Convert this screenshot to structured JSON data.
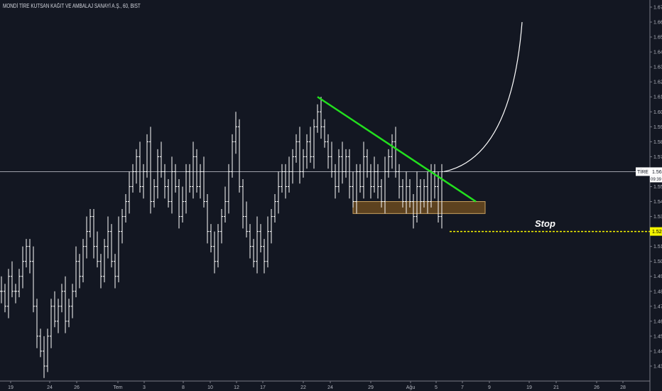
{
  "title": "MONDİ TİRE KUTSAN KAĞIT VE AMBALAJ SANAYİ A.Ş., 60, BIST",
  "colors": {
    "background": "#131722",
    "bars": "#ffffff",
    "trendline": "#22e01e",
    "zone_fill": "#6b4a1f",
    "zone_border": "#c8a060",
    "stop_line": "#f5f500",
    "price_line": "#b2b5be"
  },
  "chart_data": {
    "type": "ohlc-bar",
    "interval": "60",
    "closes": [
      1.48,
      1.47,
      1.49,
      1.48,
      1.48,
      1.49,
      1.5,
      1.51,
      1.5,
      1.47,
      1.45,
      1.44,
      1.43,
      1.45,
      1.47,
      1.46,
      1.47,
      1.48,
      1.46,
      1.47,
      1.48,
      1.5,
      1.49,
      1.51,
      1.52,
      1.53,
      1.51,
      1.5,
      1.49,
      1.51,
      1.52,
      1.5,
      1.49,
      1.52,
      1.53,
      1.54,
      1.55,
      1.56,
      1.57,
      1.55,
      1.56,
      1.58,
      1.54,
      1.55,
      1.57,
      1.56,
      1.55,
      1.54,
      1.56,
      1.55,
      1.53,
      1.54,
      1.56,
      1.55,
      1.57,
      1.55,
      1.56,
      1.54,
      1.52,
      1.51,
      1.5,
      1.52,
      1.53,
      1.54,
      1.56,
      1.58,
      1.59,
      1.55,
      1.53,
      1.52,
      1.51,
      1.5,
      1.52,
      1.51,
      1.5,
      1.52,
      1.53,
      1.54,
      1.55,
      1.56,
      1.55,
      1.56,
      1.57,
      1.58,
      1.56,
      1.57,
      1.58,
      1.57,
      1.59,
      1.6,
      1.59,
      1.58,
      1.57,
      1.56,
      1.55,
      1.57,
      1.56,
      1.57,
      1.55,
      1.54,
      1.56,
      1.55,
      1.57,
      1.56,
      1.55,
      1.56,
      1.55,
      1.54,
      1.56,
      1.57,
      1.58,
      1.56,
      1.55,
      1.54,
      1.55,
      1.54,
      1.53,
      1.55,
      1.54,
      1.55,
      1.54,
      1.56,
      1.55,
      1.53,
      1.56
    ],
    "y_axis": {
      "min": 1.43,
      "max": 1.67,
      "step": 0.01,
      "position": "right"
    },
    "x_tick_labels": [
      "19",
      "24",
      "26",
      "Tem",
      "3",
      "8",
      "10",
      "12",
      "17",
      "22",
      "24",
      "29",
      "Ağu",
      "5",
      "7",
      "9",
      "19",
      "21",
      "26",
      "28"
    ],
    "current_price": {
      "symbol": "TİRE",
      "value": "1.56",
      "countdown": "09:39"
    },
    "stop_level": {
      "value": "1.52",
      "label": "Stop"
    },
    "trendline": {
      "from_price": 1.61,
      "to_price": 1.54
    },
    "support_zone": {
      "top": 1.54,
      "bottom": 1.532
    },
    "projection_curve": {
      "from_price": 1.56,
      "to_price": 1.66
    }
  }
}
